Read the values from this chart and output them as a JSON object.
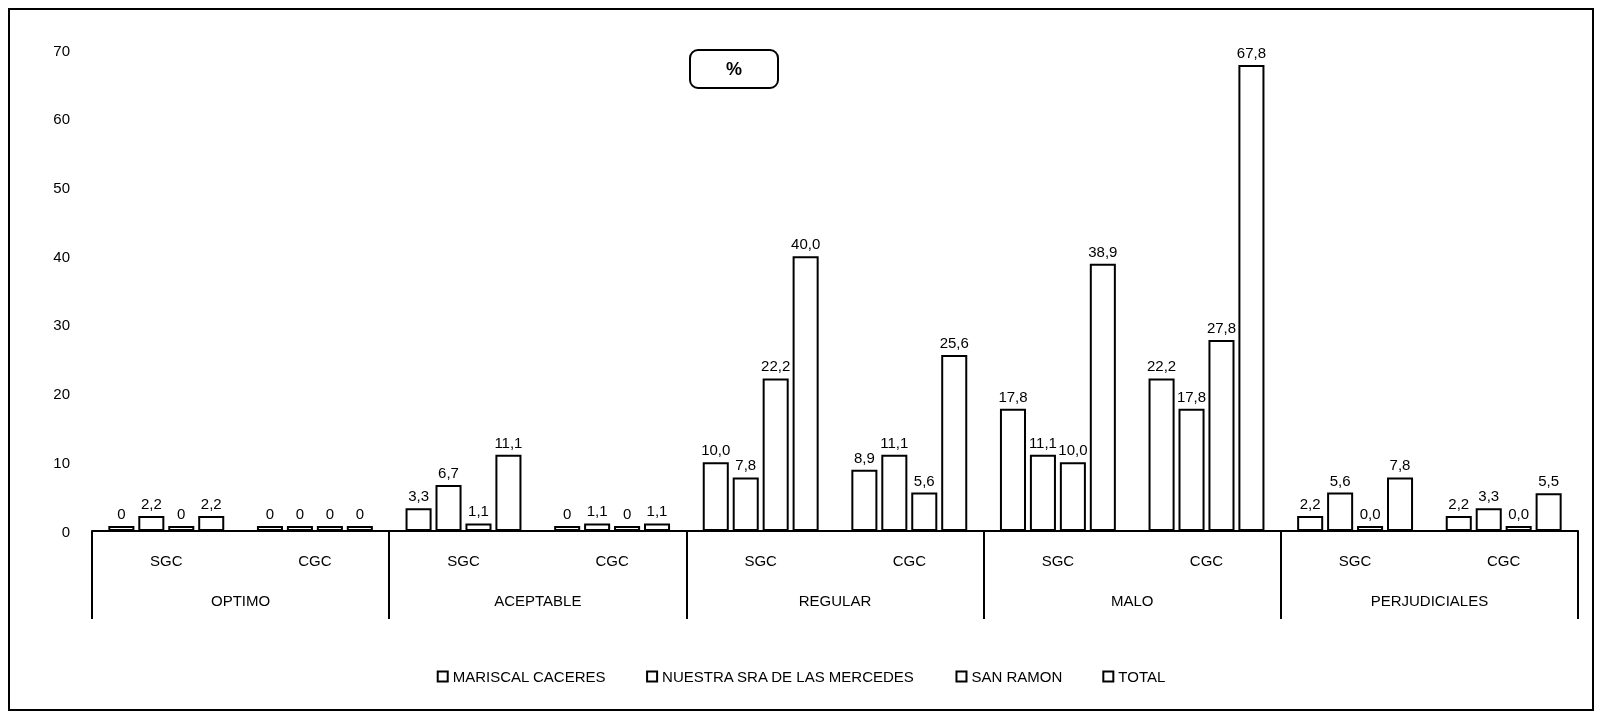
{
  "chart_data": {
    "type": "bar",
    "title": "%",
    "categories": [
      "SGC",
      "CGC",
      "SGC",
      "CGC",
      "SGC",
      "CGC",
      "SGC",
      "CGC",
      "SGC",
      "CGC"
    ],
    "annotations": [
      "OPTIMO",
      "ACEPTABLE",
      "REGULAR",
      "MALO",
      "PERJUDICIALES"
    ],
    "series": [
      {
        "name": "MARISCAL CACERES",
        "color": "#ffffff",
        "values": [
          0,
          0,
          3.3,
          0,
          10.0,
          8.9,
          17.8,
          22.2,
          2.2,
          2.2
        ],
        "value_labels": [
          "0",
          "0",
          "3,3",
          "0",
          "10,0",
          "8,9",
          "17,8",
          "22,2",
          "2,2",
          "2,2"
        ]
      },
      {
        "name": "NUESTRA SRA DE LAS MERCEDES",
        "color": "#ffffff",
        "values": [
          2.2,
          0,
          6.7,
          1.1,
          7.8,
          11.1,
          11.1,
          17.8,
          5.6,
          3.3
        ],
        "value_labels": [
          "2,2",
          "0",
          "6,7",
          "1,1",
          "7,8",
          "11,1",
          "11,1",
          "17,8",
          "5,6",
          "3,3"
        ]
      },
      {
        "name": "SAN RAMON",
        "color": "#ffffff",
        "values": [
          0,
          0,
          1.1,
          0,
          22.2,
          5.6,
          10.0,
          27.8,
          0,
          0
        ],
        "value_labels": [
          "0",
          "0",
          "1,1",
          "0",
          "22,2",
          "5,6",
          "10,0",
          "27,8",
          "0,0",
          "0,0"
        ]
      },
      {
        "name": "TOTAL",
        "color": "#ffffff",
        "values": [
          2.2,
          0,
          11.1,
          1.1,
          40.0,
          25.6,
          38.9,
          67.8,
          7.8,
          5.5
        ],
        "value_labels": [
          "2,2",
          "0",
          "11,1",
          "1,1",
          "40,0",
          "25,6",
          "38,9",
          "67,8",
          "7,8",
          "5,5"
        ]
      }
    ],
    "ylim": [
      0,
      70
    ],
    "yticks": [
      0,
      10,
      20,
      30,
      40,
      50,
      60,
      70
    ],
    "grid": false,
    "legend": "bottom"
  }
}
